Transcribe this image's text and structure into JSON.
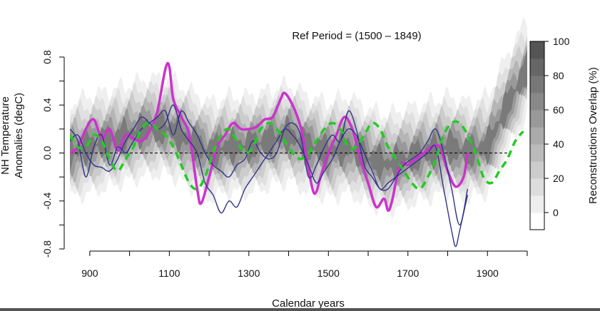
{
  "chart_data": {
    "type": "line",
    "title": "Ref Period = (1500 – 1849)",
    "xlabel": "Calendar years",
    "ylabel_line1": "NH Temperature",
    "ylabel_line2": "Anomalies (degC)",
    "xlim": [
      850,
      2000
    ],
    "ylim": [
      -0.8,
      0.8
    ],
    "x_ticks": [
      900,
      1000,
      1100,
      1200,
      1300,
      1400,
      1500,
      1600,
      1700,
      1800,
      1900,
      2000
    ],
    "x_tick_labels": [
      "900",
      "1100",
      "1300",
      "1500",
      "1700",
      "1900"
    ],
    "x_tick_label_values": [
      900,
      1100,
      1300,
      1500,
      1700,
      1900
    ],
    "y_ticks": [
      -0.8,
      -0.4,
      0.0,
      0.4,
      0.8
    ],
    "y_tick_labels": [
      "-0.8",
      "-0.4",
      "0.0",
      "0.4",
      "0.8"
    ],
    "reference_line_y": 0.0,
    "colorbar": {
      "label": "Reconstructions Overlap (%)",
      "ticks": [
        0,
        20,
        40,
        60,
        80,
        100
      ],
      "tick_labels": [
        "0",
        "20",
        "40",
        "60",
        "80",
        "100"
      ],
      "range": [
        -10,
        100
      ],
      "levels": 11
    },
    "series": [
      {
        "color": "#cc33cc",
        "style": "thick",
        "x": [
          850,
          870,
          890,
          910,
          930,
          950,
          970,
          990,
          1010,
          1030,
          1050,
          1070,
          1090,
          1100,
          1110,
          1130,
          1150,
          1170,
          1180,
          1200,
          1220,
          1240,
          1260,
          1280,
          1300,
          1320,
          1340,
          1360,
          1380,
          1390,
          1410,
          1430,
          1440,
          1460,
          1470,
          1480,
          1500,
          1520,
          1540,
          1560,
          1580,
          1600,
          1620,
          1640,
          1650,
          1660,
          1680,
          1700,
          1720,
          1740,
          1760,
          1780,
          1800,
          1820,
          1840,
          1850
        ],
        "y": [
          0.0,
          0.05,
          0.2,
          0.28,
          0.12,
          0.2,
          0.02,
          0.15,
          0.12,
          0.1,
          0.18,
          0.35,
          0.7,
          0.72,
          0.45,
          0.3,
          0.15,
          -0.3,
          -0.42,
          -0.2,
          0.05,
          0.15,
          0.25,
          0.2,
          0.2,
          0.22,
          0.28,
          0.3,
          0.45,
          0.5,
          0.4,
          0.22,
          0.05,
          -0.3,
          -0.32,
          -0.2,
          0.0,
          0.15,
          0.3,
          0.2,
          -0.05,
          -0.25,
          -0.45,
          -0.38,
          -0.48,
          -0.4,
          -0.1,
          -0.1,
          -0.05,
          0.0,
          0.05,
          0.05,
          -0.15,
          -0.28,
          -0.2,
          0.0
        ]
      },
      {
        "color": "#33338a",
        "style": "thin",
        "x": [
          850,
          870,
          890,
          910,
          930,
          950,
          970,
          990,
          1010,
          1030,
          1050,
          1070,
          1090,
          1110,
          1130,
          1150,
          1170,
          1190,
          1210,
          1230,
          1250,
          1270,
          1290,
          1310,
          1330,
          1350,
          1370,
          1390,
          1410,
          1430,
          1450,
          1470,
          1490,
          1510,
          1530,
          1550,
          1570,
          1590,
          1610,
          1630,
          1650,
          1670,
          1690,
          1710,
          1730,
          1750,
          1770,
          1790,
          1810,
          1820,
          1830,
          1850
        ],
        "y": [
          0.1,
          0.15,
          0.0,
          -0.1,
          -0.12,
          -0.15,
          -0.05,
          0.1,
          0.2,
          0.3,
          0.25,
          0.2,
          0.25,
          0.4,
          0.2,
          0.1,
          0.0,
          -0.25,
          -0.35,
          -0.5,
          -0.4,
          -0.45,
          -0.3,
          -0.2,
          -0.1,
          0.0,
          0.1,
          0.2,
          0.15,
          0.05,
          -0.1,
          -0.25,
          -0.15,
          -0.05,
          0.1,
          0.2,
          0.15,
          0.0,
          -0.15,
          -0.3,
          -0.25,
          -0.2,
          -0.15,
          -0.1,
          -0.05,
          0.0,
          0.05,
          -0.3,
          -0.65,
          -0.78,
          -0.65,
          -0.35
        ]
      },
      {
        "color": "#33338a",
        "style": "thin",
        "x": [
          850,
          870,
          890,
          910,
          930,
          950,
          970,
          990,
          1010,
          1030,
          1050,
          1070,
          1090,
          1110,
          1130,
          1150,
          1170,
          1190,
          1210,
          1230,
          1250,
          1270,
          1290,
          1310,
          1330,
          1350,
          1370,
          1390,
          1410,
          1430,
          1450,
          1470,
          1490,
          1510,
          1530,
          1550,
          1570,
          1590,
          1610,
          1630,
          1650,
          1670,
          1690,
          1710,
          1730,
          1750,
          1770,
          1790,
          1810,
          1830,
          1850
        ],
        "y": [
          0.2,
          0.1,
          -0.2,
          0.05,
          0.15,
          -0.1,
          0.05,
          0.0,
          0.1,
          0.2,
          0.25,
          0.3,
          0.35,
          0.15,
          0.35,
          0.25,
          0.15,
          0.0,
          -0.1,
          -0.15,
          -0.2,
          -0.1,
          -0.05,
          0.1,
          0.0,
          -0.05,
          0.0,
          0.2,
          0.25,
          0.15,
          -0.2,
          -0.1,
          0.05,
          0.15,
          0.1,
          0.35,
          0.2,
          -0.1,
          -0.2,
          -0.3,
          -0.3,
          -0.2,
          -0.1,
          -0.05,
          0.0,
          0.1,
          0.2,
          0.0,
          -0.3,
          -0.6,
          -0.3
        ]
      },
      {
        "color": "#22cc22",
        "style": "dashed",
        "x": [
          850,
          870,
          890,
          910,
          930,
          950,
          970,
          990,
          1010,
          1030,
          1050,
          1070,
          1090,
          1110,
          1130,
          1150,
          1170,
          1190,
          1210,
          1230,
          1250,
          1270,
          1290,
          1310,
          1330,
          1350,
          1370,
          1390,
          1410,
          1430,
          1450,
          1470,
          1490,
          1510,
          1530,
          1550,
          1570,
          1590,
          1610,
          1630,
          1650,
          1670,
          1690,
          1710,
          1730,
          1750,
          1770,
          1790,
          1810,
          1830,
          1850,
          1870,
          1890,
          1910,
          1930,
          1950,
          1970,
          1990
        ],
        "y": [
          0.15,
          0.05,
          0.05,
          0.15,
          0.1,
          -0.05,
          -0.15,
          -0.05,
          0.05,
          0.2,
          0.25,
          0.2,
          0.15,
          0.05,
          -0.1,
          -0.25,
          -0.3,
          -0.2,
          0.0,
          0.15,
          0.2,
          0.1,
          0.0,
          0.05,
          0.2,
          0.25,
          0.2,
          0.1,
          0.0,
          -0.05,
          0.0,
          0.1,
          0.2,
          0.25,
          0.2,
          0.05,
          0.05,
          0.15,
          0.25,
          0.2,
          0.05,
          -0.05,
          -0.15,
          -0.25,
          -0.3,
          -0.2,
          -0.05,
          0.15,
          0.25,
          0.25,
          0.15,
          0.0,
          -0.2,
          -0.25,
          -0.15,
          -0.05,
          0.1,
          0.18
        ]
      }
    ],
    "band_centre": {
      "x": [
        850,
        900,
        950,
        1000,
        1050,
        1100,
        1150,
        1200,
        1250,
        1300,
        1350,
        1400,
        1450,
        1500,
        1550,
        1600,
        1650,
        1700,
        1750,
        1800,
        1850,
        1900,
        1950,
        2000
      ],
      "y": [
        0.0,
        0.05,
        0.1,
        0.15,
        0.2,
        0.2,
        0.1,
        0.0,
        0.05,
        0.05,
        0.1,
        0.15,
        0.05,
        0.0,
        0.05,
        -0.05,
        -0.1,
        -0.05,
        0.0,
        0.05,
        0.0,
        0.05,
        0.4,
        0.7
      ]
    }
  }
}
